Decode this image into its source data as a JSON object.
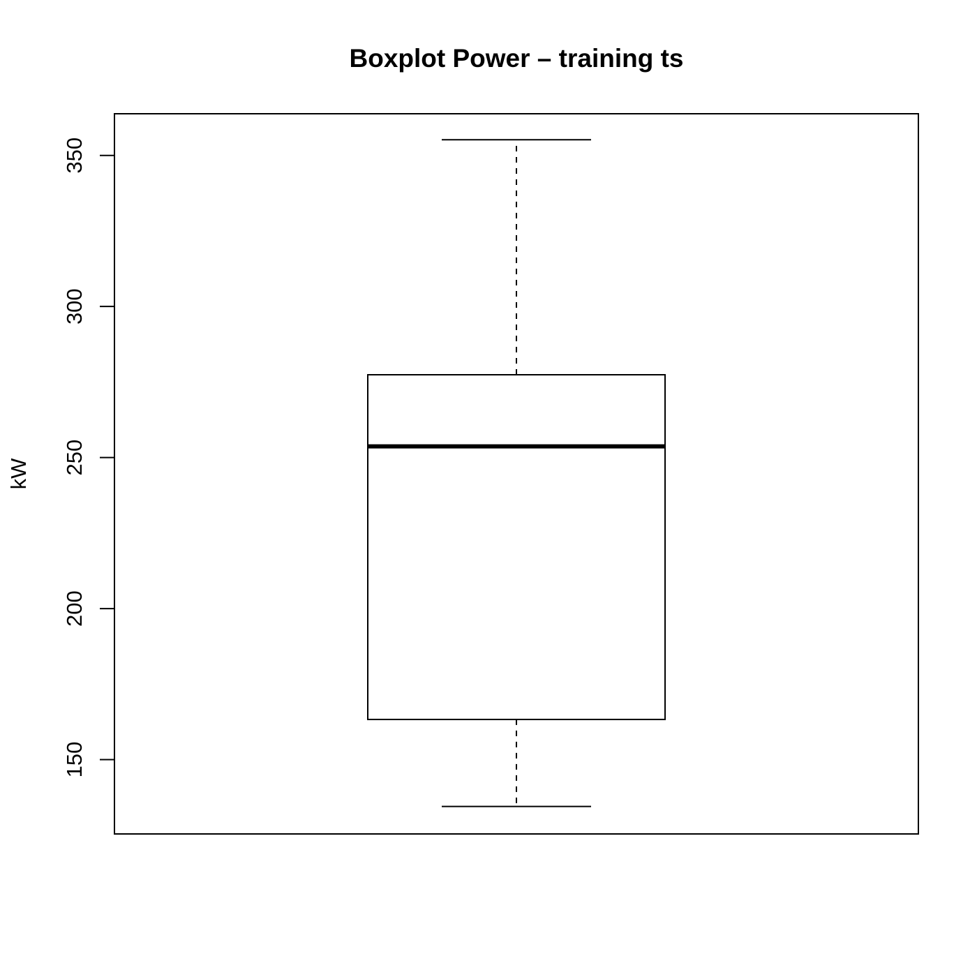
{
  "chart_data": {
    "type": "boxplot",
    "title": "Boxplot Power – training ts",
    "xlabel": "",
    "ylabel": "kW",
    "ylim": [
      125.4,
      363.8
    ],
    "y_ticks": [
      150,
      200,
      250,
      300,
      350
    ],
    "grid": false,
    "boxes": [
      {
        "min": 134.5,
        "q1": 163.3,
        "median": 253.7,
        "q3": 277.4,
        "max": 355.2
      }
    ],
    "colors": {
      "stroke": "#000000",
      "box_fill": "#ffffff",
      "background": "#ffffff"
    }
  }
}
